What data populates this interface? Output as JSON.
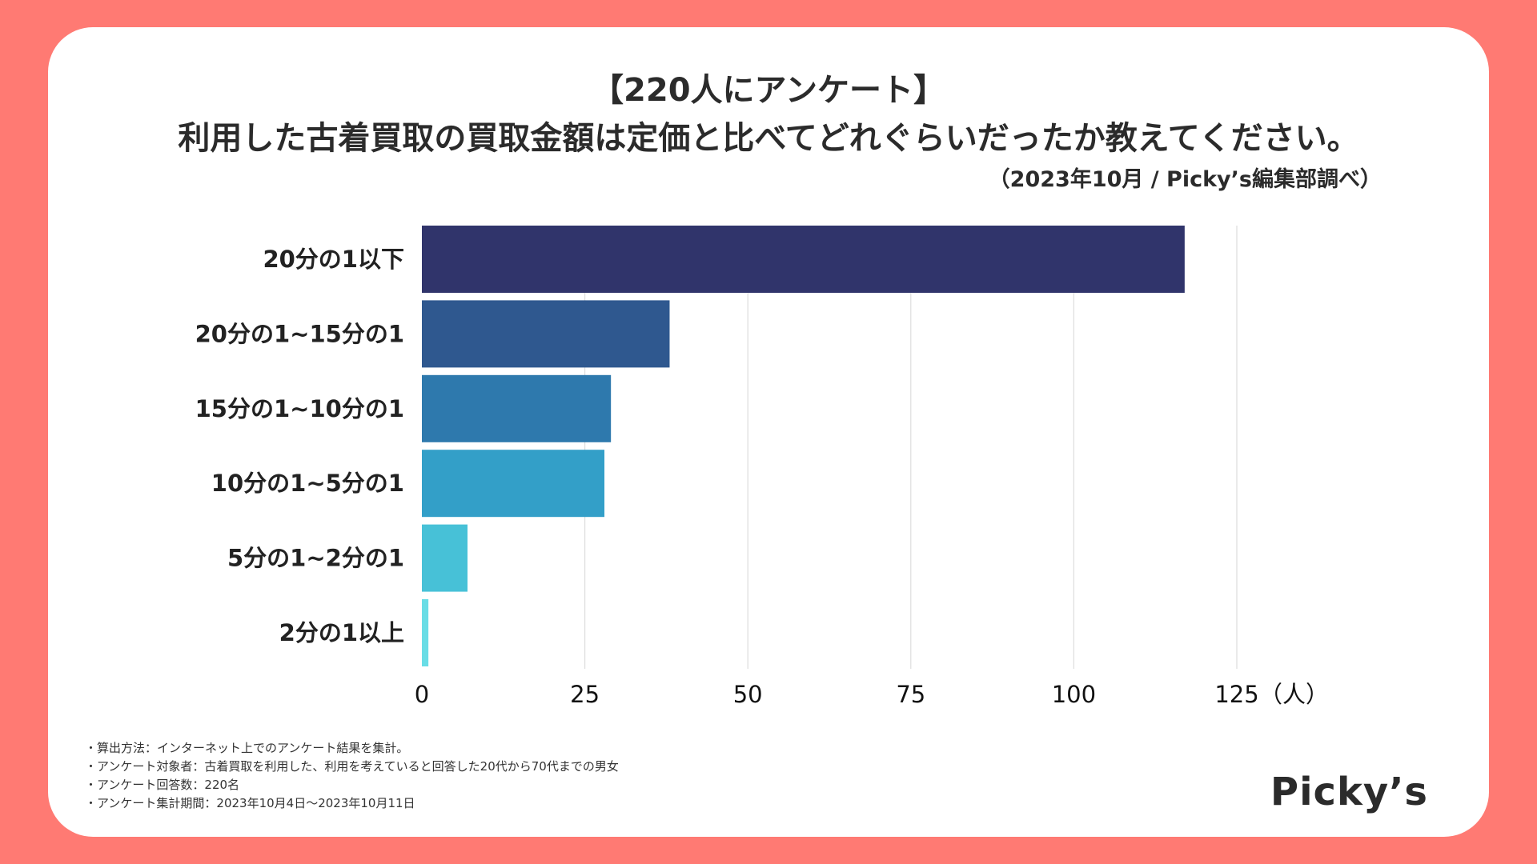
{
  "header": {
    "title_line1": "【220人にアンケート】",
    "title_line2": "利用した古着買取の買取金額は定価と比べてどれぐらいだったか教えてください。",
    "source": "（2023年10月 / Picky’s編集部調べ）"
  },
  "chart_data": {
    "type": "bar",
    "orientation": "horizontal",
    "title": "【220人にアンケート】利用した古着買取の買取金額は定価と比べてどれぐらいだったか教えてください。",
    "categories": [
      "20分の1以下",
      "20分の1~15分の1",
      "15分の1~10分の1",
      "10分の1~5分の1",
      "5分の1~2分の1",
      "2分の1以上"
    ],
    "values": [
      117,
      38,
      29,
      28,
      7,
      1
    ],
    "colors": [
      "#30346B",
      "#2F588F",
      "#2E79AD",
      "#339FC8",
      "#47C1D7",
      "#69DDE6"
    ],
    "xlabel": "（人）",
    "xlim": [
      0,
      125
    ],
    "xticks": [
      0,
      25,
      50,
      75,
      100,
      125
    ],
    "grid": true
  },
  "notes": [
    "・算出方法：インターネット上でのアンケート結果を集計。",
    "・アンケート対象者：古着買取を利用した、利用を考えていると回答した20代から70代までの男女",
    "・アンケート回答数：220名",
    "・アンケート集計期間：2023年10月4日〜2023年10月11日"
  ],
  "logo": {
    "text": "Picky’s"
  },
  "colors": {
    "background": "#FF7A73",
    "card": "#FFFFFF",
    "grid": "#DDDDDD"
  }
}
